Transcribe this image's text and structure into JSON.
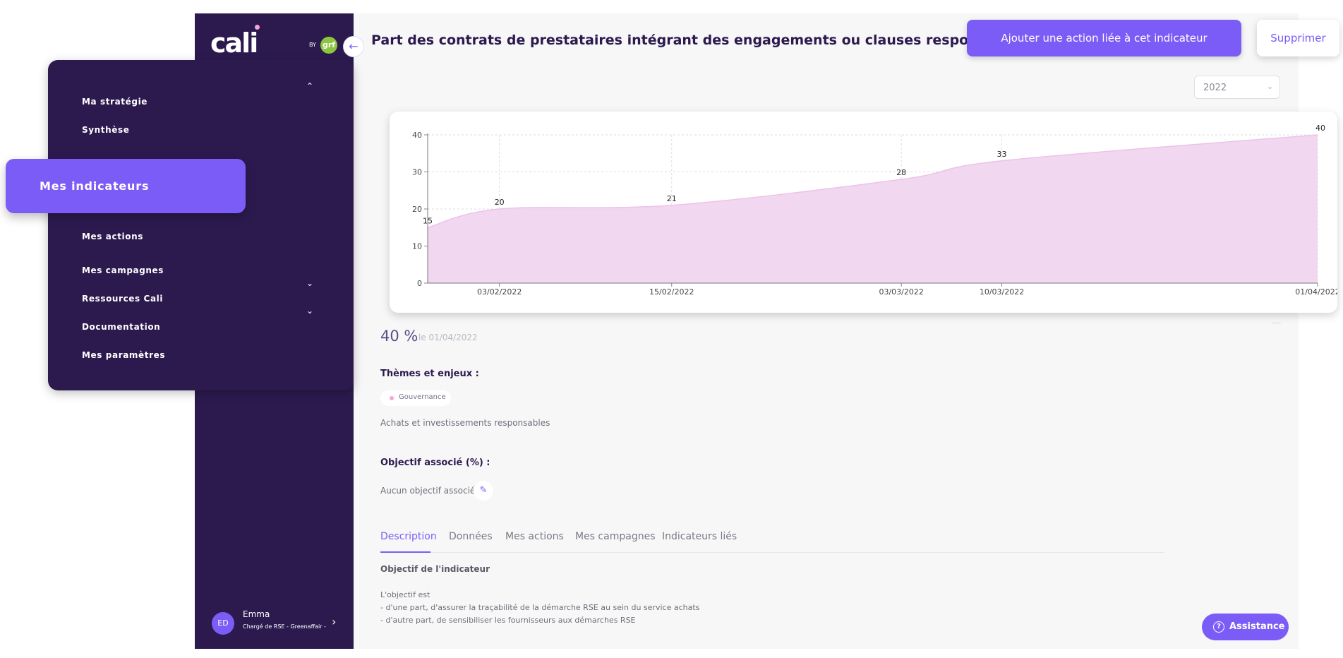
{
  "brand": {
    "logo_text": "cali",
    "by_label": "BY",
    "partner_badge": "grf"
  },
  "sidebar": {
    "collapse_icon": "arrow-left-icon",
    "nav": [
      {
        "label": "Ma stratégie"
      },
      {
        "label": "Synthèse"
      },
      {
        "label": "Mes indicateurs",
        "active": true
      },
      {
        "label": "Mes actions"
      },
      {
        "label": "Mes campagnes"
      },
      {
        "label": "Ressources Cali"
      },
      {
        "label": "Documentation"
      },
      {
        "label": "Mes paramètres"
      }
    ],
    "user": {
      "initials": "ED",
      "name": "Emma",
      "role": "Chargé de RSE - Greenaffair -"
    }
  },
  "header": {
    "title": "Part des contrats de prestataires intégrant des engagements ou clauses responsables",
    "add_action_label": "Ajouter une action liée à cet indicateur",
    "delete_label": "Supprimer",
    "year": "2022"
  },
  "indicator": {
    "current_value": "40 %",
    "current_date": "le 01/04/2022",
    "themes_label": "Thèmes et enjeux :",
    "theme_chip": "Gouvernance",
    "enjeu": "Achats et investissements responsables",
    "objective_label": "Objectif associé (%) :",
    "objective_value": "Aucun objectif associé"
  },
  "tabs": [
    {
      "label": "Description",
      "active": true
    },
    {
      "label": "Données"
    },
    {
      "label": "Mes actions"
    },
    {
      "label": "Mes campagnes"
    },
    {
      "label": "Indicateurs liés"
    }
  ],
  "description": {
    "heading": "Objectif de l'indicateur",
    "lines": [
      "L'objectif est",
      "- d'une part, d'assurer la traçabilité de la démarche RSE au sein du service achats",
      "- d'autre part, de sensibiliser les fournisseurs aux démarches RSE"
    ]
  },
  "assistance": {
    "label": "Assistance",
    "icon": "question-circle-icon"
  },
  "colors": {
    "primary": "#7c5cf6",
    "sidebar": "#2c1a4f",
    "area_fill": "#f1d3f0",
    "area_stroke": "#ecc2ea"
  },
  "chart_data": {
    "type": "area",
    "x": [
      "2022-01-29",
      "2022-02-03",
      "2022-02-15",
      "2022-03-03",
      "2022-03-10",
      "2022-04-01"
    ],
    "values": [
      15,
      20,
      21,
      28,
      33,
      40
    ],
    "data_labels": [
      "15",
      "20",
      "21",
      "28",
      "33",
      "40"
    ],
    "x_tick_labels": [
      "03/02/2022",
      "15/02/2022",
      "03/03/2022",
      "10/03/2022",
      "01/04/2022"
    ],
    "x_tick_dates": [
      "2022-02-03",
      "2022-02-15",
      "2022-03-03",
      "2022-03-10",
      "2022-04-01"
    ],
    "y_ticks": [
      0,
      10,
      20,
      30,
      40
    ],
    "ylim": [
      0,
      40
    ],
    "grid": true
  }
}
